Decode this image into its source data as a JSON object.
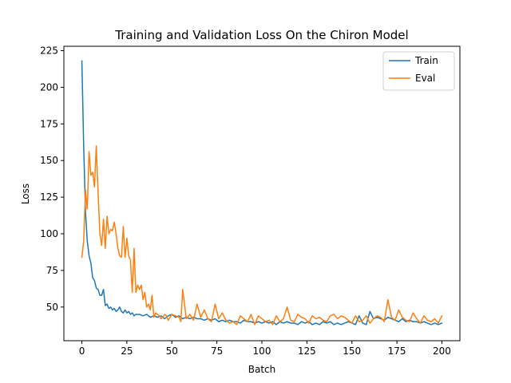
{
  "chart_data": {
    "type": "line",
    "title": "Training and Validation Loss On the Chiron Model",
    "xlabel": "Batch",
    "ylabel": "Loss",
    "xlim": [
      -10,
      210
    ],
    "ylim": [
      27,
      228
    ],
    "xticks": [
      0,
      25,
      50,
      75,
      100,
      125,
      150,
      175,
      200
    ],
    "yticks": [
      50,
      75,
      100,
      125,
      150,
      175,
      200,
      225
    ],
    "grid": false,
    "legend_position": "top-right",
    "series": [
      {
        "name": "Train",
        "color": "#1f77b4",
        "x": [
          0,
          1,
          2,
          3,
          4,
          5,
          6,
          7,
          8,
          9,
          10,
          11,
          12,
          13,
          14,
          15,
          16,
          17,
          18,
          19,
          20,
          21,
          22,
          23,
          24,
          25,
          26,
          27,
          28,
          29,
          30,
          32,
          34,
          36,
          38,
          40,
          42,
          44,
          46,
          48,
          50,
          52,
          54,
          56,
          58,
          60,
          62,
          64,
          66,
          68,
          70,
          72,
          74,
          76,
          78,
          80,
          82,
          84,
          86,
          88,
          90,
          92,
          94,
          96,
          98,
          100,
          102,
          104,
          106,
          108,
          110,
          112,
          114,
          116,
          118,
          120,
          122,
          124,
          126,
          128,
          130,
          132,
          134,
          136,
          138,
          140,
          142,
          144,
          146,
          148,
          150,
          152,
          154,
          156,
          158,
          160,
          162,
          164,
          166,
          168,
          170,
          172,
          174,
          176,
          178,
          180,
          182,
          184,
          186,
          188,
          190,
          192,
          194,
          196,
          198,
          200
        ],
        "y": [
          218,
          160,
          115,
          95,
          85,
          80,
          70,
          68,
          63,
          62,
          58,
          58,
          62,
          51,
          52,
          49,
          50,
          48,
          49,
          47,
          48,
          50,
          47,
          46,
          48,
          46,
          47,
          45,
          46,
          44,
          45,
          45,
          44,
          45,
          43,
          44,
          43,
          44,
          42,
          44,
          45,
          43,
          44,
          42,
          43,
          42,
          43,
          42,
          42,
          41,
          42,
          41,
          42,
          40,
          41,
          40,
          41,
          40,
          40,
          39,
          41,
          40,
          40,
          39,
          40,
          39,
          40,
          39,
          40,
          38,
          40,
          39,
          40,
          39,
          39,
          38,
          40,
          39,
          40,
          38,
          39,
          38,
          40,
          39,
          40,
          38,
          39,
          38,
          39,
          40,
          39,
          38,
          44,
          39,
          38,
          47,
          42,
          43,
          42,
          41,
          43,
          42,
          41,
          40,
          42,
          40,
          41,
          40,
          40,
          39,
          40,
          39,
          38,
          39,
          38,
          39
        ]
      },
      {
        "name": "Eval",
        "color": "#ff7f0e",
        "x": [
          0,
          1,
          2,
          3,
          4,
          5,
          6,
          7,
          8,
          9,
          10,
          11,
          12,
          13,
          14,
          15,
          16,
          17,
          18,
          19,
          20,
          21,
          22,
          23,
          24,
          25,
          26,
          27,
          28,
          29,
          30,
          31,
          32,
          33,
          34,
          35,
          36,
          37,
          38,
          39,
          40,
          41,
          42,
          43,
          44,
          45,
          46,
          47,
          48,
          49,
          50,
          52,
          54,
          55,
          56,
          58,
          60,
          62,
          64,
          66,
          68,
          70,
          72,
          74,
          76,
          78,
          80,
          82,
          84,
          86,
          88,
          90,
          92,
          94,
          96,
          98,
          100,
          102,
          104,
          106,
          108,
          110,
          112,
          114,
          116,
          118,
          120,
          122,
          124,
          126,
          128,
          130,
          132,
          134,
          136,
          138,
          140,
          142,
          144,
          146,
          148,
          150,
          152,
          154,
          156,
          158,
          160,
          162,
          164,
          166,
          168,
          170,
          172,
          174,
          176,
          178,
          180,
          182,
          184,
          186,
          188,
          190,
          192,
          194,
          196,
          198,
          200
        ],
        "y": [
          84,
          95,
          130,
          117,
          156,
          140,
          142,
          132,
          160,
          128,
          100,
          92,
          110,
          90,
          112,
          100,
          103,
          102,
          108,
          100,
          90,
          85,
          84,
          105,
          84,
          97,
          85,
          82,
          60,
          90,
          60,
          65,
          62,
          65,
          55,
          60,
          50,
          52,
          48,
          58,
          43,
          46,
          45,
          44,
          42,
          43,
          45,
          44,
          41,
          43,
          45,
          44,
          43,
          40,
          62,
          42,
          45,
          41,
          52,
          43,
          48,
          42,
          40,
          52,
          42,
          46,
          41,
          39,
          40,
          38,
          44,
          42,
          40,
          45,
          38,
          44,
          42,
          40,
          41,
          38,
          44,
          40,
          42,
          50,
          41,
          40,
          45,
          43,
          42,
          39,
          44,
          42,
          43,
          41,
          40,
          44,
          45,
          42,
          44,
          43,
          41,
          39,
          44,
          40,
          41,
          44,
          39,
          42,
          44,
          43,
          40,
          55,
          43,
          41,
          48,
          43,
          41,
          40,
          46,
          42,
          39,
          44,
          41,
          40,
          42,
          39,
          44
        ]
      }
    ]
  }
}
